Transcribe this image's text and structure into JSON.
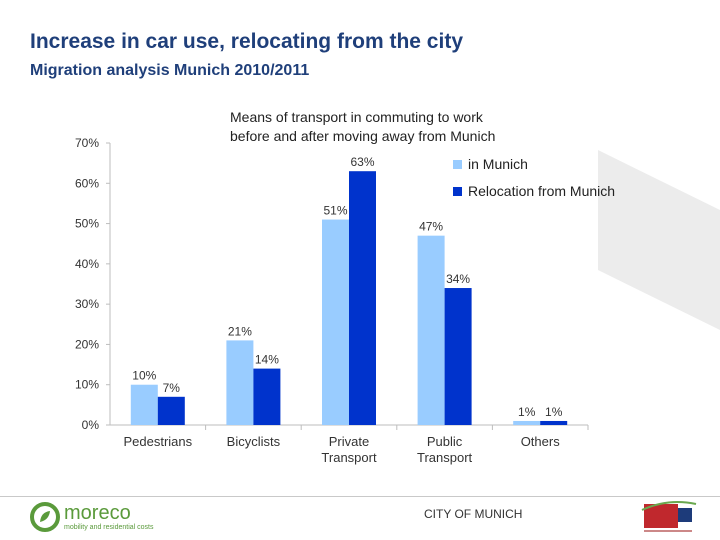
{
  "header": {
    "title": "Increase in car use, relocating from the city",
    "subtitle": "Migration analysis Munich 2010/2011"
  },
  "chart_data": {
    "type": "bar",
    "title_lines": [
      "Means of transport in commuting to work",
      "before and after moving away from Munich"
    ],
    "categories": [
      [
        "Pedestrians"
      ],
      [
        "Bicyclists"
      ],
      [
        "Private",
        "Transport"
      ],
      [
        "Public",
        "Transport"
      ],
      [
        "Others"
      ]
    ],
    "series": [
      {
        "name": "in Munich",
        "values": [
          10,
          21,
          51,
          47,
          1
        ],
        "color": "#99ccff"
      },
      {
        "name": "Relocation from Munich",
        "values": [
          7,
          14,
          63,
          34,
          1
        ],
        "color": "#0033cc"
      }
    ],
    "ylim": [
      0,
      70
    ],
    "yticks": [
      0,
      10,
      20,
      30,
      40,
      50,
      60,
      70
    ],
    "tick_format": "{v}%",
    "value_suffix": "%",
    "legend_position": "top-right",
    "grid": false
  },
  "footer": {
    "logo_name": "moreco",
    "logo_tagline": "mobility and residential costs",
    "city": "CITY OF MUNICH"
  }
}
